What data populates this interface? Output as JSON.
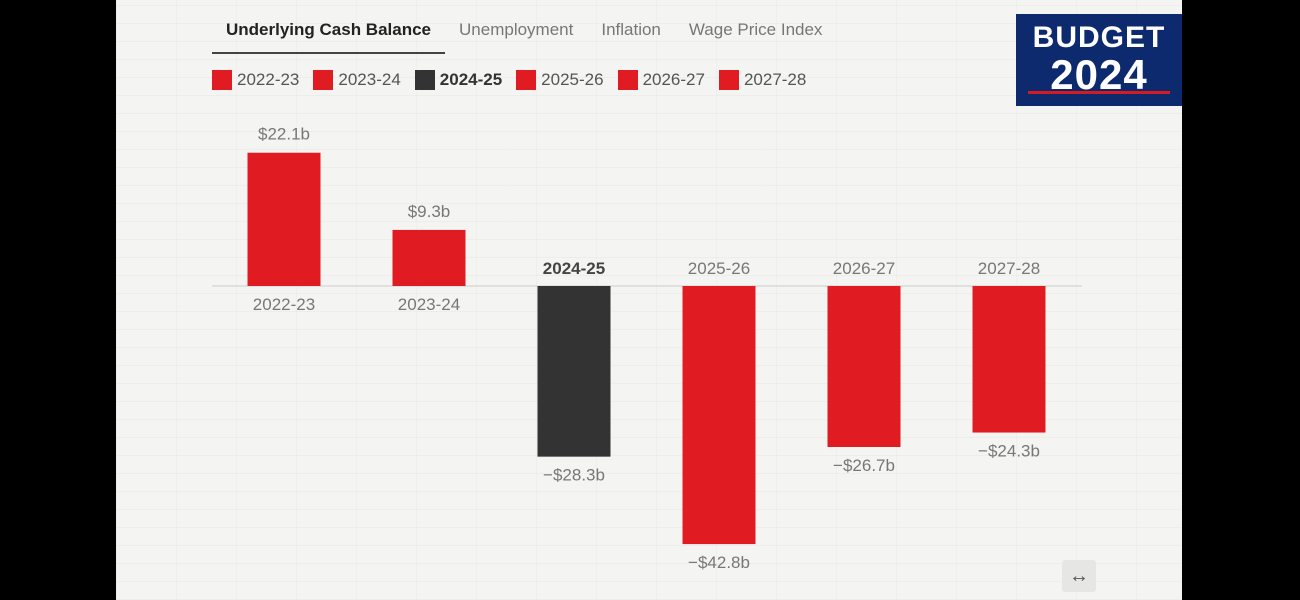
{
  "tabs": [
    {
      "label": "Underlying Cash Balance",
      "active": true
    },
    {
      "label": "Unemployment",
      "active": false
    },
    {
      "label": "Inflation",
      "active": false
    },
    {
      "label": "Wage Price Index",
      "active": false
    }
  ],
  "logo": {
    "line1": "BUDGET",
    "line2": "2024"
  },
  "colors": {
    "highlight": "#e11b22",
    "current": "#333333",
    "baseline": "#cccccc",
    "text": "#777777",
    "brand": "#0e2a6e"
  },
  "expand_icon": "horizontal-arrows-icon",
  "chart_data": {
    "type": "bar",
    "categories": [
      "2022-23",
      "2023-24",
      "2024-25",
      "2025-26",
      "2026-27",
      "2027-28"
    ],
    "values": [
      22.1,
      9.3,
      -28.3,
      -42.8,
      -26.7,
      -24.3
    ],
    "value_labels": [
      "$22.1b",
      "$9.3b",
      "−$28.3b",
      "−$42.8b",
      "−$26.7b",
      "−$24.3b"
    ],
    "current_category": "2024-25",
    "legend": [
      "2022-23",
      "2023-24",
      "2024-25",
      "2025-26",
      "2026-27",
      "2027-28"
    ],
    "ylim": [
      -42.8,
      22.1
    ],
    "grid": false,
    "legend_position": "top-left"
  }
}
